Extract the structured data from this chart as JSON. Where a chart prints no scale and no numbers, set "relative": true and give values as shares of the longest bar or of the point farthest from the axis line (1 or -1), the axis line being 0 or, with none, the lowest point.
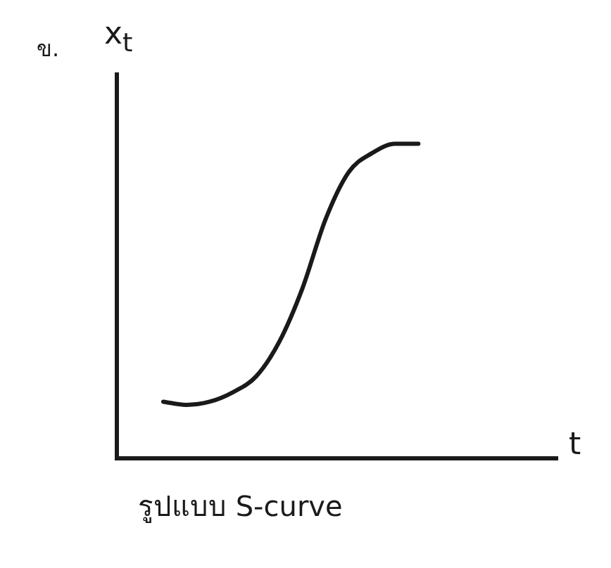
{
  "chart_data": {
    "type": "line",
    "title": "ข.",
    "xlabel": "t",
    "ylabel": "x$_{t}$",
    "annotations": [
      "รูปแบบ S-curve"
    ],
    "relative": true,
    "categories": [
      null,
      null,
      null,
      null,
      null,
      null,
      null,
      null,
      null,
      null,
      null,
      null,
      null,
      null,
      null,
      null,
      null,
      null,
      null,
      null
    ],
    "series": [
      {
        "color": "#1a1a1a",
        "values": [
          null,
          null,
          0.18,
          0.17,
          0.18,
          0.21,
          0.26,
          0.37,
          0.54,
          0.76,
          0.91,
          0.97,
          1.0,
          1.0,
          null,
          null,
          null,
          null,
          null,
          null
        ]
      }
    ],
    "grid": false,
    "legend": false,
    "marker": "none",
    "line_style": "solid"
  }
}
